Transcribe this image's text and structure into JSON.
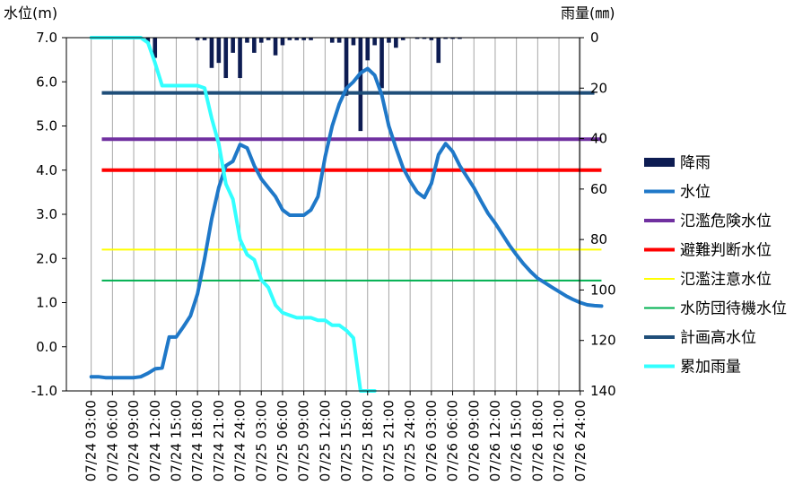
{
  "chart_data": {
    "type": "line",
    "y_left": {
      "label": "水位(m)",
      "range": [
        -1.0,
        7.0
      ],
      "ticks": [
        "7.0",
        "6.0",
        "5.0",
        "4.0",
        "3.0",
        "2.0",
        "1.0",
        "0.0",
        "-1.0"
      ]
    },
    "y_right": {
      "label": "雨量(㎜)",
      "range": [
        0,
        140
      ],
      "reversed": true,
      "ticks": [
        "0",
        "20",
        "40",
        "60",
        "80",
        "100",
        "120",
        "140"
      ]
    },
    "x": {
      "range_hours": [
        0,
        72
      ],
      "ticks": [
        "07/24 03:00",
        "07/24 06:00",
        "07/24 09:00",
        "07/24 12:00",
        "07/24 15:00",
        "07/24 18:00",
        "07/24 21:00",
        "07/24 24:00",
        "07/25 03:00",
        "07/25 06:00",
        "07/25 09:00",
        "07/25 12:00",
        "07/25 15:00",
        "07/25 18:00",
        "07/25 21:00",
        "07/25 24:00",
        "07/26 03:00",
        "07/26 06:00",
        "07/26 09:00",
        "07/26 12:00",
        "07/26 15:00",
        "07/26 18:00",
        "07/26 21:00",
        "07/26 24:00"
      ]
    },
    "grid": "vertical",
    "legend_position": "right",
    "series": [
      {
        "name": "降雨",
        "kind": "bar",
        "axis": "right",
        "color": "#0d1c52",
        "data": [
          [
            8,
            2
          ],
          [
            9,
            8
          ],
          [
            15,
            1
          ],
          [
            16,
            1
          ],
          [
            17,
            12
          ],
          [
            18,
            10
          ],
          [
            19,
            16
          ],
          [
            20,
            6
          ],
          [
            21,
            16
          ],
          [
            22,
            2
          ],
          [
            23,
            6
          ],
          [
            24,
            2
          ],
          [
            25,
            1
          ],
          [
            26,
            7
          ],
          [
            27,
            3
          ],
          [
            28,
            1
          ],
          [
            29,
            1
          ],
          [
            30,
            1
          ],
          [
            31,
            1
          ],
          [
            34,
            2
          ],
          [
            35,
            2
          ],
          [
            36,
            23
          ],
          [
            37,
            3
          ],
          [
            38,
            37
          ],
          [
            39,
            9
          ],
          [
            40,
            3
          ],
          [
            41,
            20
          ],
          [
            42,
            2
          ],
          [
            43,
            4
          ],
          [
            44,
            1
          ],
          [
            46,
            0.5
          ],
          [
            47,
            0.5
          ],
          [
            48,
            1
          ],
          [
            49,
            10
          ],
          [
            50,
            0.5
          ],
          [
            51,
            0.5
          ],
          [
            52,
            0.5
          ]
        ]
      },
      {
        "name": "水位",
        "kind": "line",
        "axis": "left",
        "color": "#1f78c8",
        "data": [
          [
            0,
            -0.68
          ],
          [
            1,
            -0.68
          ],
          [
            2,
            -0.7
          ],
          [
            3,
            -0.7
          ],
          [
            4,
            -0.7
          ],
          [
            5,
            -0.7
          ],
          [
            6,
            -0.7
          ],
          [
            7,
            -0.68
          ],
          [
            8,
            -0.6
          ],
          [
            9,
            -0.5
          ],
          [
            10,
            -0.48
          ],
          [
            11,
            0.22
          ],
          [
            12,
            0.22
          ],
          [
            13,
            0.45
          ],
          [
            14,
            0.7
          ],
          [
            15,
            1.2
          ],
          [
            16,
            2.0
          ],
          [
            17,
            2.9
          ],
          [
            18,
            3.6
          ],
          [
            19,
            4.1
          ],
          [
            20,
            4.2
          ],
          [
            21,
            4.58
          ],
          [
            22,
            4.5
          ],
          [
            23,
            4.1
          ],
          [
            24,
            3.8
          ],
          [
            25,
            3.6
          ],
          [
            26,
            3.4
          ],
          [
            27,
            3.1
          ],
          [
            28,
            2.98
          ],
          [
            29,
            2.98
          ],
          [
            30,
            2.98
          ],
          [
            31,
            3.1
          ],
          [
            32,
            3.4
          ],
          [
            33,
            4.3
          ],
          [
            34,
            5.0
          ],
          [
            35,
            5.5
          ],
          [
            36,
            5.85
          ],
          [
            37,
            6.0
          ],
          [
            38,
            6.2
          ],
          [
            39,
            6.3
          ],
          [
            40,
            6.15
          ],
          [
            41,
            5.7
          ],
          [
            42,
            5.0
          ],
          [
            43,
            4.5
          ],
          [
            44,
            4.05
          ],
          [
            45,
            3.75
          ],
          [
            46,
            3.5
          ],
          [
            47,
            3.38
          ],
          [
            48,
            3.7
          ],
          [
            49,
            4.35
          ],
          [
            50,
            4.6
          ],
          [
            51,
            4.42
          ],
          [
            52,
            4.1
          ],
          [
            53,
            3.85
          ],
          [
            54,
            3.6
          ],
          [
            55,
            3.3
          ],
          [
            56,
            3.02
          ],
          [
            57,
            2.8
          ],
          [
            58,
            2.55
          ],
          [
            59,
            2.3
          ],
          [
            60,
            2.08
          ],
          [
            61,
            1.88
          ],
          [
            62,
            1.7
          ],
          [
            63,
            1.55
          ],
          [
            64,
            1.45
          ],
          [
            65,
            1.35
          ],
          [
            66,
            1.25
          ],
          [
            67,
            1.15
          ],
          [
            68,
            1.07
          ],
          [
            69,
            1.0
          ],
          [
            70,
            0.95
          ],
          [
            71,
            0.93
          ],
          [
            72,
            0.92
          ]
        ]
      },
      {
        "name": "氾濫危険水位",
        "kind": "hline",
        "axis": "left",
        "color": "#7030a0",
        "value": 4.7,
        "span": [
          1.5,
          72
        ]
      },
      {
        "name": "避難判断水位",
        "kind": "hline",
        "axis": "left",
        "color": "#ff0000",
        "value": 4.0,
        "span": [
          1.5,
          72
        ]
      },
      {
        "name": "氾濫注意水位",
        "kind": "hline",
        "axis": "left",
        "color": "#ffff00",
        "value": 2.2,
        "span": [
          1.5,
          72
        ]
      },
      {
        "name": "水防団待機水位",
        "kind": "hline",
        "axis": "left",
        "color": "#00b050",
        "value": 1.5,
        "span": [
          1.5,
          72
        ]
      },
      {
        "name": "計画高水位",
        "kind": "hline",
        "axis": "left",
        "color": "#1f4e79",
        "value": 5.75,
        "span": [
          1.5,
          71
        ]
      },
      {
        "name": "累加雨量",
        "kind": "line",
        "axis": "right",
        "color": "#33ffff",
        "data": [
          [
            0,
            0
          ],
          [
            1,
            0
          ],
          [
            2,
            0
          ],
          [
            3,
            0
          ],
          [
            4,
            0
          ],
          [
            5,
            0
          ],
          [
            6,
            0
          ],
          [
            7,
            0
          ],
          [
            8,
            2
          ],
          [
            9,
            10
          ],
          [
            10,
            19
          ],
          [
            11,
            19
          ],
          [
            12,
            19
          ],
          [
            13,
            19
          ],
          [
            14,
            19
          ],
          [
            15,
            19
          ],
          [
            16,
            20
          ],
          [
            17,
            32
          ],
          [
            18,
            42
          ],
          [
            19,
            58
          ],
          [
            20,
            64
          ],
          [
            21,
            80
          ],
          [
            22,
            86
          ],
          [
            23,
            88
          ],
          [
            24,
            96
          ],
          [
            25,
            99
          ],
          [
            26,
            106
          ],
          [
            27,
            109
          ],
          [
            28,
            110
          ],
          [
            29,
            111
          ],
          [
            30,
            111
          ],
          [
            31,
            111
          ],
          [
            32,
            112
          ],
          [
            33,
            112
          ],
          [
            34,
            114
          ],
          [
            35,
            114
          ],
          [
            36,
            116
          ],
          [
            37,
            119
          ],
          [
            38,
            140
          ],
          [
            39,
            140
          ],
          [
            40,
            140
          ]
        ]
      }
    ]
  }
}
